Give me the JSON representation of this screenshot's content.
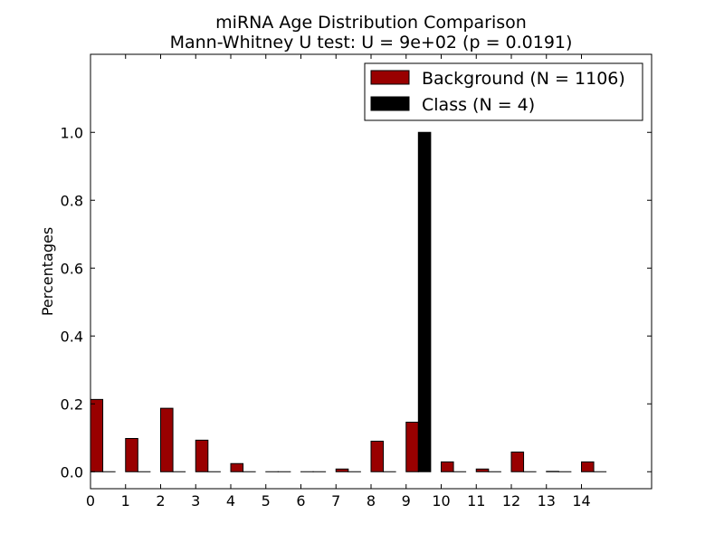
{
  "chart_data": {
    "type": "bar",
    "title": "miRNA Age Distribution Comparison",
    "subtitle": "Mann-Whitney U test: U = 9e+02 (p = 0.0191)",
    "xlabel": "",
    "ylabel": "Percentages",
    "categories": [
      "0",
      "1",
      "2",
      "3",
      "4",
      "5",
      "6",
      "7",
      "8",
      "9",
      "10",
      "11",
      "12",
      "13",
      "14"
    ],
    "xlim": [
      0,
      16
    ],
    "ylim": [
      -0.05,
      1.23
    ],
    "yticks": [
      0.0,
      0.2,
      0.4,
      0.6,
      0.8,
      1.0
    ],
    "ytick_labels": [
      "0.0",
      "0.2",
      "0.4",
      "0.6",
      "0.8",
      "1.0"
    ],
    "grid": false,
    "legend_position": "top-right",
    "series": [
      {
        "name": "Background (N = 1106)",
        "color": "#990000",
        "values": [
          0.213,
          0.098,
          0.187,
          0.093,
          0.024,
          0.0,
          0.0,
          0.008,
          0.09,
          0.146,
          0.029,
          0.008,
          0.058,
          0.001,
          0.029
        ]
      },
      {
        "name": "Class (N = 4)",
        "color": "#000000",
        "values": [
          0.0,
          0.0,
          0.0,
          0.0,
          0.0,
          0.0,
          0.0,
          0.0,
          0.0,
          1.0,
          0.0,
          0.0,
          0.0,
          0.0,
          0.0
        ]
      }
    ]
  }
}
